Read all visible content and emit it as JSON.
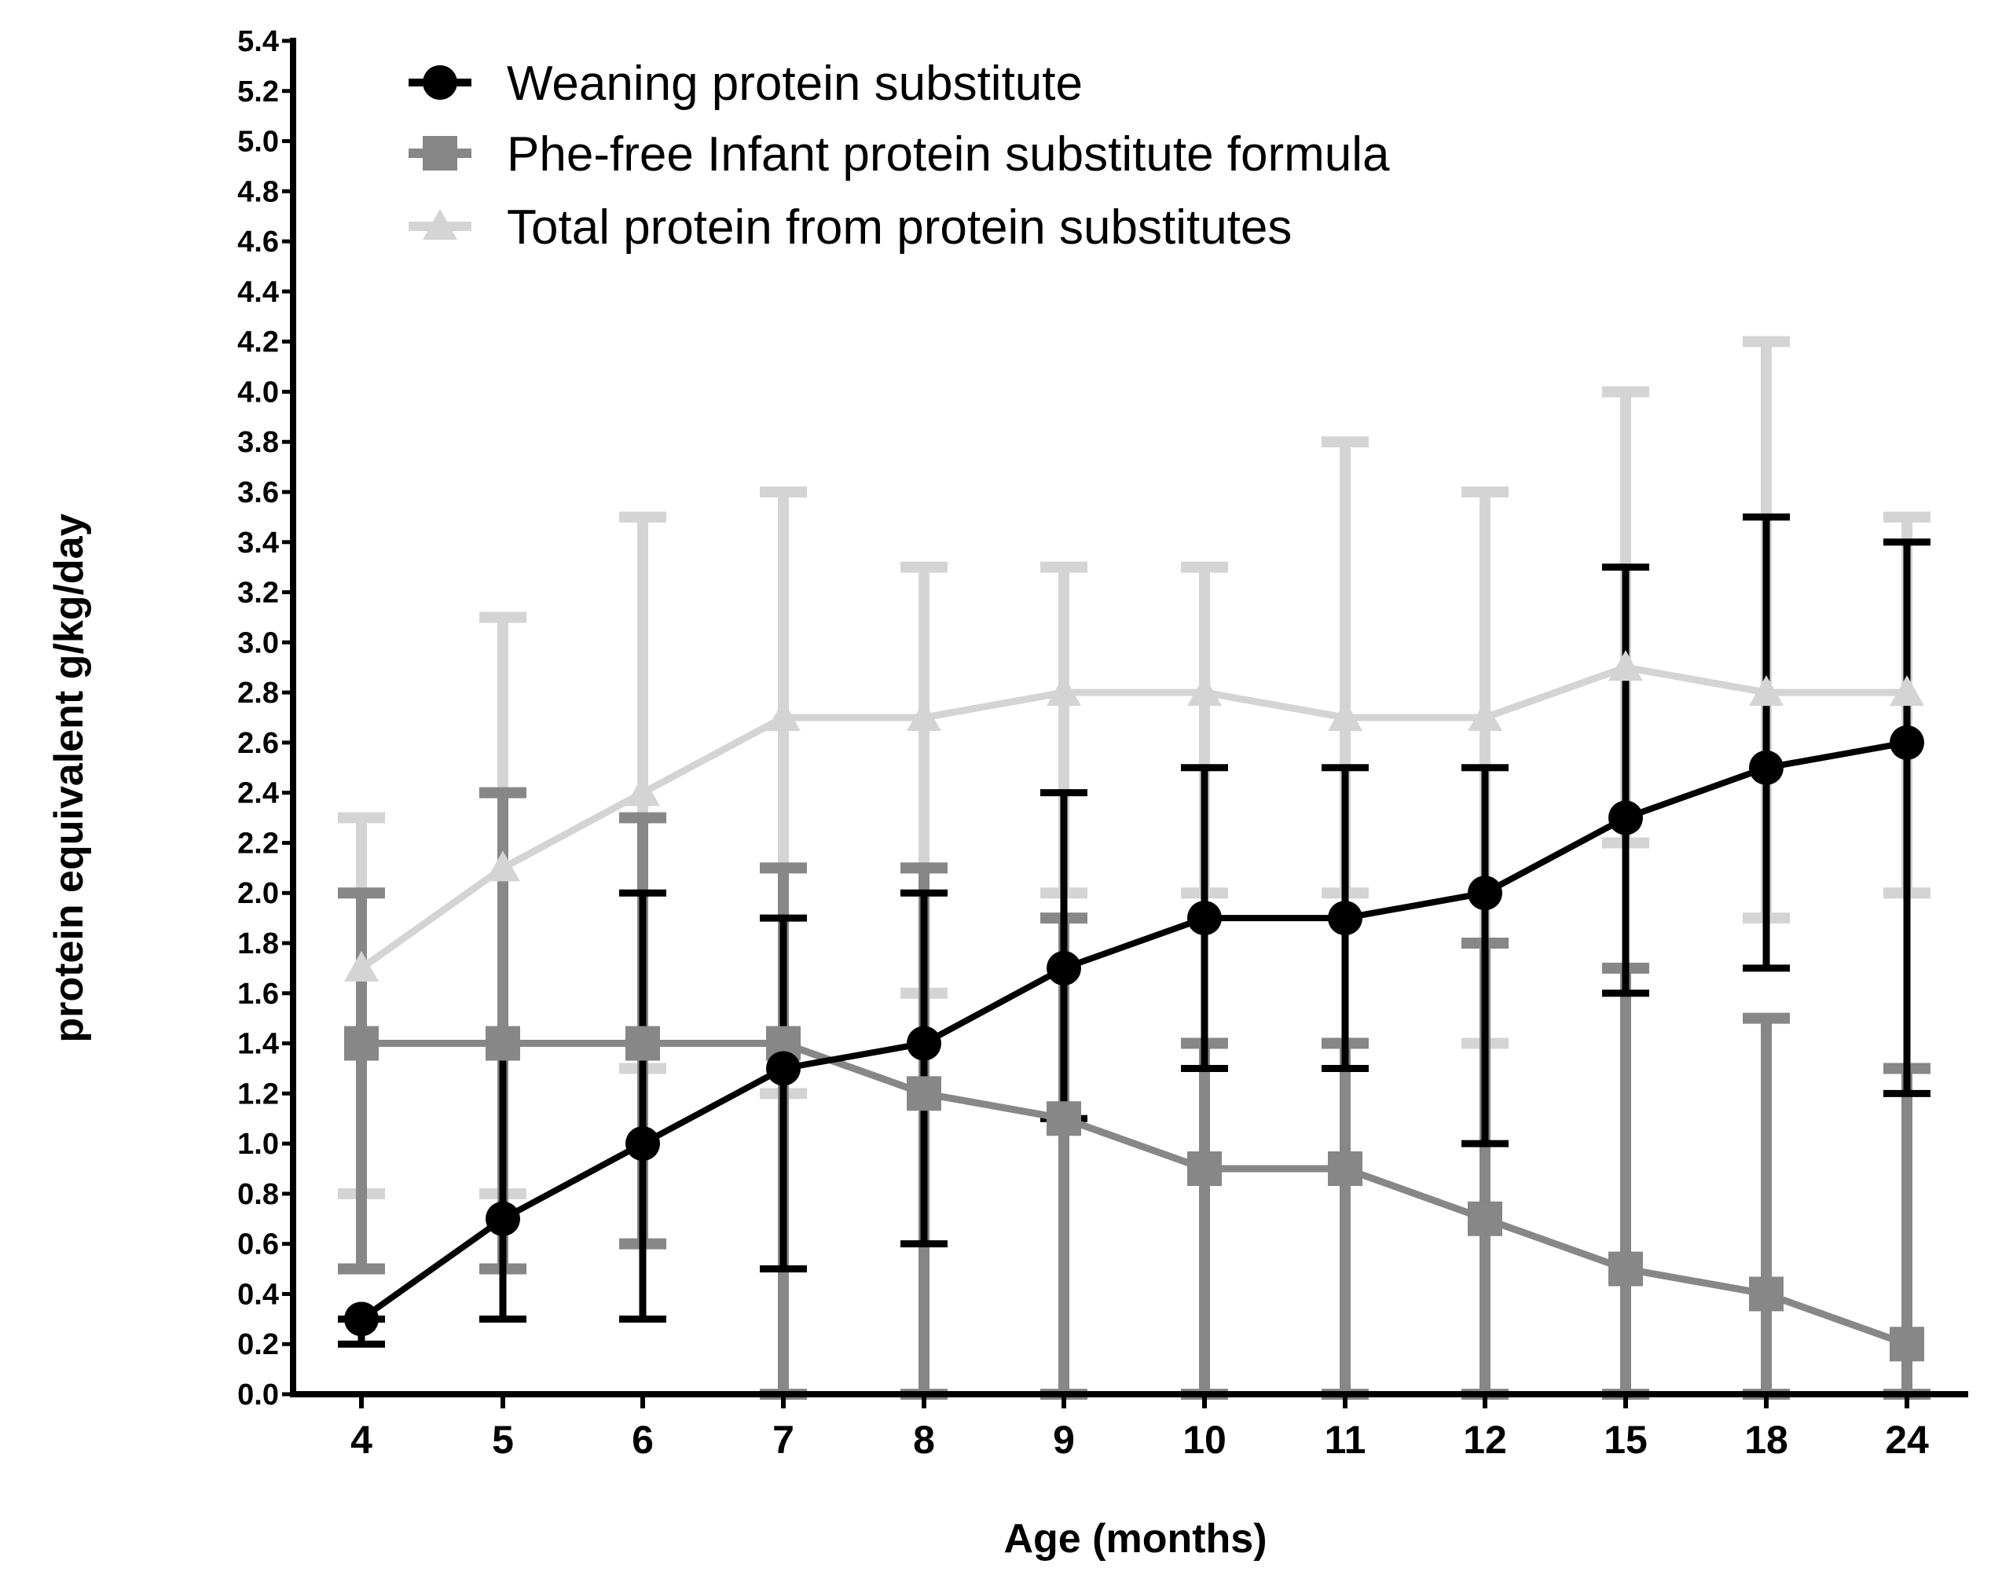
{
  "chart_data": {
    "type": "line",
    "title": "",
    "xlabel": "Age (months)",
    "ylabel": "protein equivalent g/kg/day",
    "categories": [
      "4",
      "5",
      "6",
      "7",
      "8",
      "9",
      "10",
      "11",
      "12",
      "15",
      "18",
      "24"
    ],
    "ylim": [
      0,
      5.4
    ],
    "yticks": [
      "0.0",
      "0.2",
      "0.4",
      "0.6",
      "0.8",
      "1.0",
      "1.2",
      "1.4",
      "1.6",
      "1.8",
      "2.0",
      "2.2",
      "2.4",
      "2.6",
      "2.8",
      "3.0",
      "3.2",
      "3.4",
      "3.6",
      "3.8",
      "4.0",
      "4.2",
      "4.4",
      "4.6",
      "4.8",
      "5.0",
      "5.2",
      "5.4"
    ],
    "grid": false,
    "legend_position": "top-left",
    "series": [
      {
        "name": "Total protein from protein substitutes",
        "marker": "triangle",
        "color": "#d4d4d4",
        "values": [
          1.7,
          2.1,
          2.4,
          2.7,
          2.7,
          2.8,
          2.8,
          2.7,
          2.7,
          2.9,
          2.8,
          2.8
        ],
        "error_low": [
          0.8,
          0.8,
          1.3,
          1.2,
          1.6,
          2.0,
          2.0,
          2.0,
          1.4,
          2.2,
          1.9,
          2.0
        ],
        "error_high": [
          2.3,
          3.1,
          3.5,
          3.6,
          3.3,
          3.3,
          3.3,
          3.8,
          3.6,
          4.0,
          4.2,
          3.5
        ]
      },
      {
        "name": "Phe-free Infant protein substitute formula",
        "marker": "square",
        "color": "#878787",
        "values": [
          1.4,
          1.4,
          1.4,
          1.4,
          1.2,
          1.1,
          0.9,
          0.9,
          0.7,
          0.5,
          0.4,
          0.2
        ],
        "error_low": [
          0.5,
          0.5,
          0.6,
          0.0,
          0.0,
          0.0,
          0.0,
          0.0,
          0.0,
          0.0,
          0.0,
          0.0
        ],
        "error_high": [
          2.0,
          2.4,
          2.3,
          2.1,
          2.1,
          1.9,
          1.4,
          1.4,
          1.8,
          1.7,
          1.5,
          1.3
        ]
      },
      {
        "name": "Weaning protein substitute",
        "marker": "circle",
        "color": "#000000",
        "values": [
          0.3,
          0.7,
          1.0,
          1.3,
          1.4,
          1.7,
          1.9,
          1.9,
          2.0,
          2.3,
          2.5,
          2.6
        ],
        "error_low": [
          0.2,
          0.3,
          0.3,
          0.5,
          0.6,
          1.1,
          1.3,
          1.3,
          1.0,
          1.6,
          1.7,
          1.2
        ],
        "error_high": [
          0.3,
          1.4,
          2.0,
          1.9,
          2.0,
          2.4,
          2.5,
          2.5,
          2.5,
          3.3,
          3.5,
          3.4
        ]
      }
    ],
    "legend_order": [
      2,
      1,
      0
    ]
  }
}
